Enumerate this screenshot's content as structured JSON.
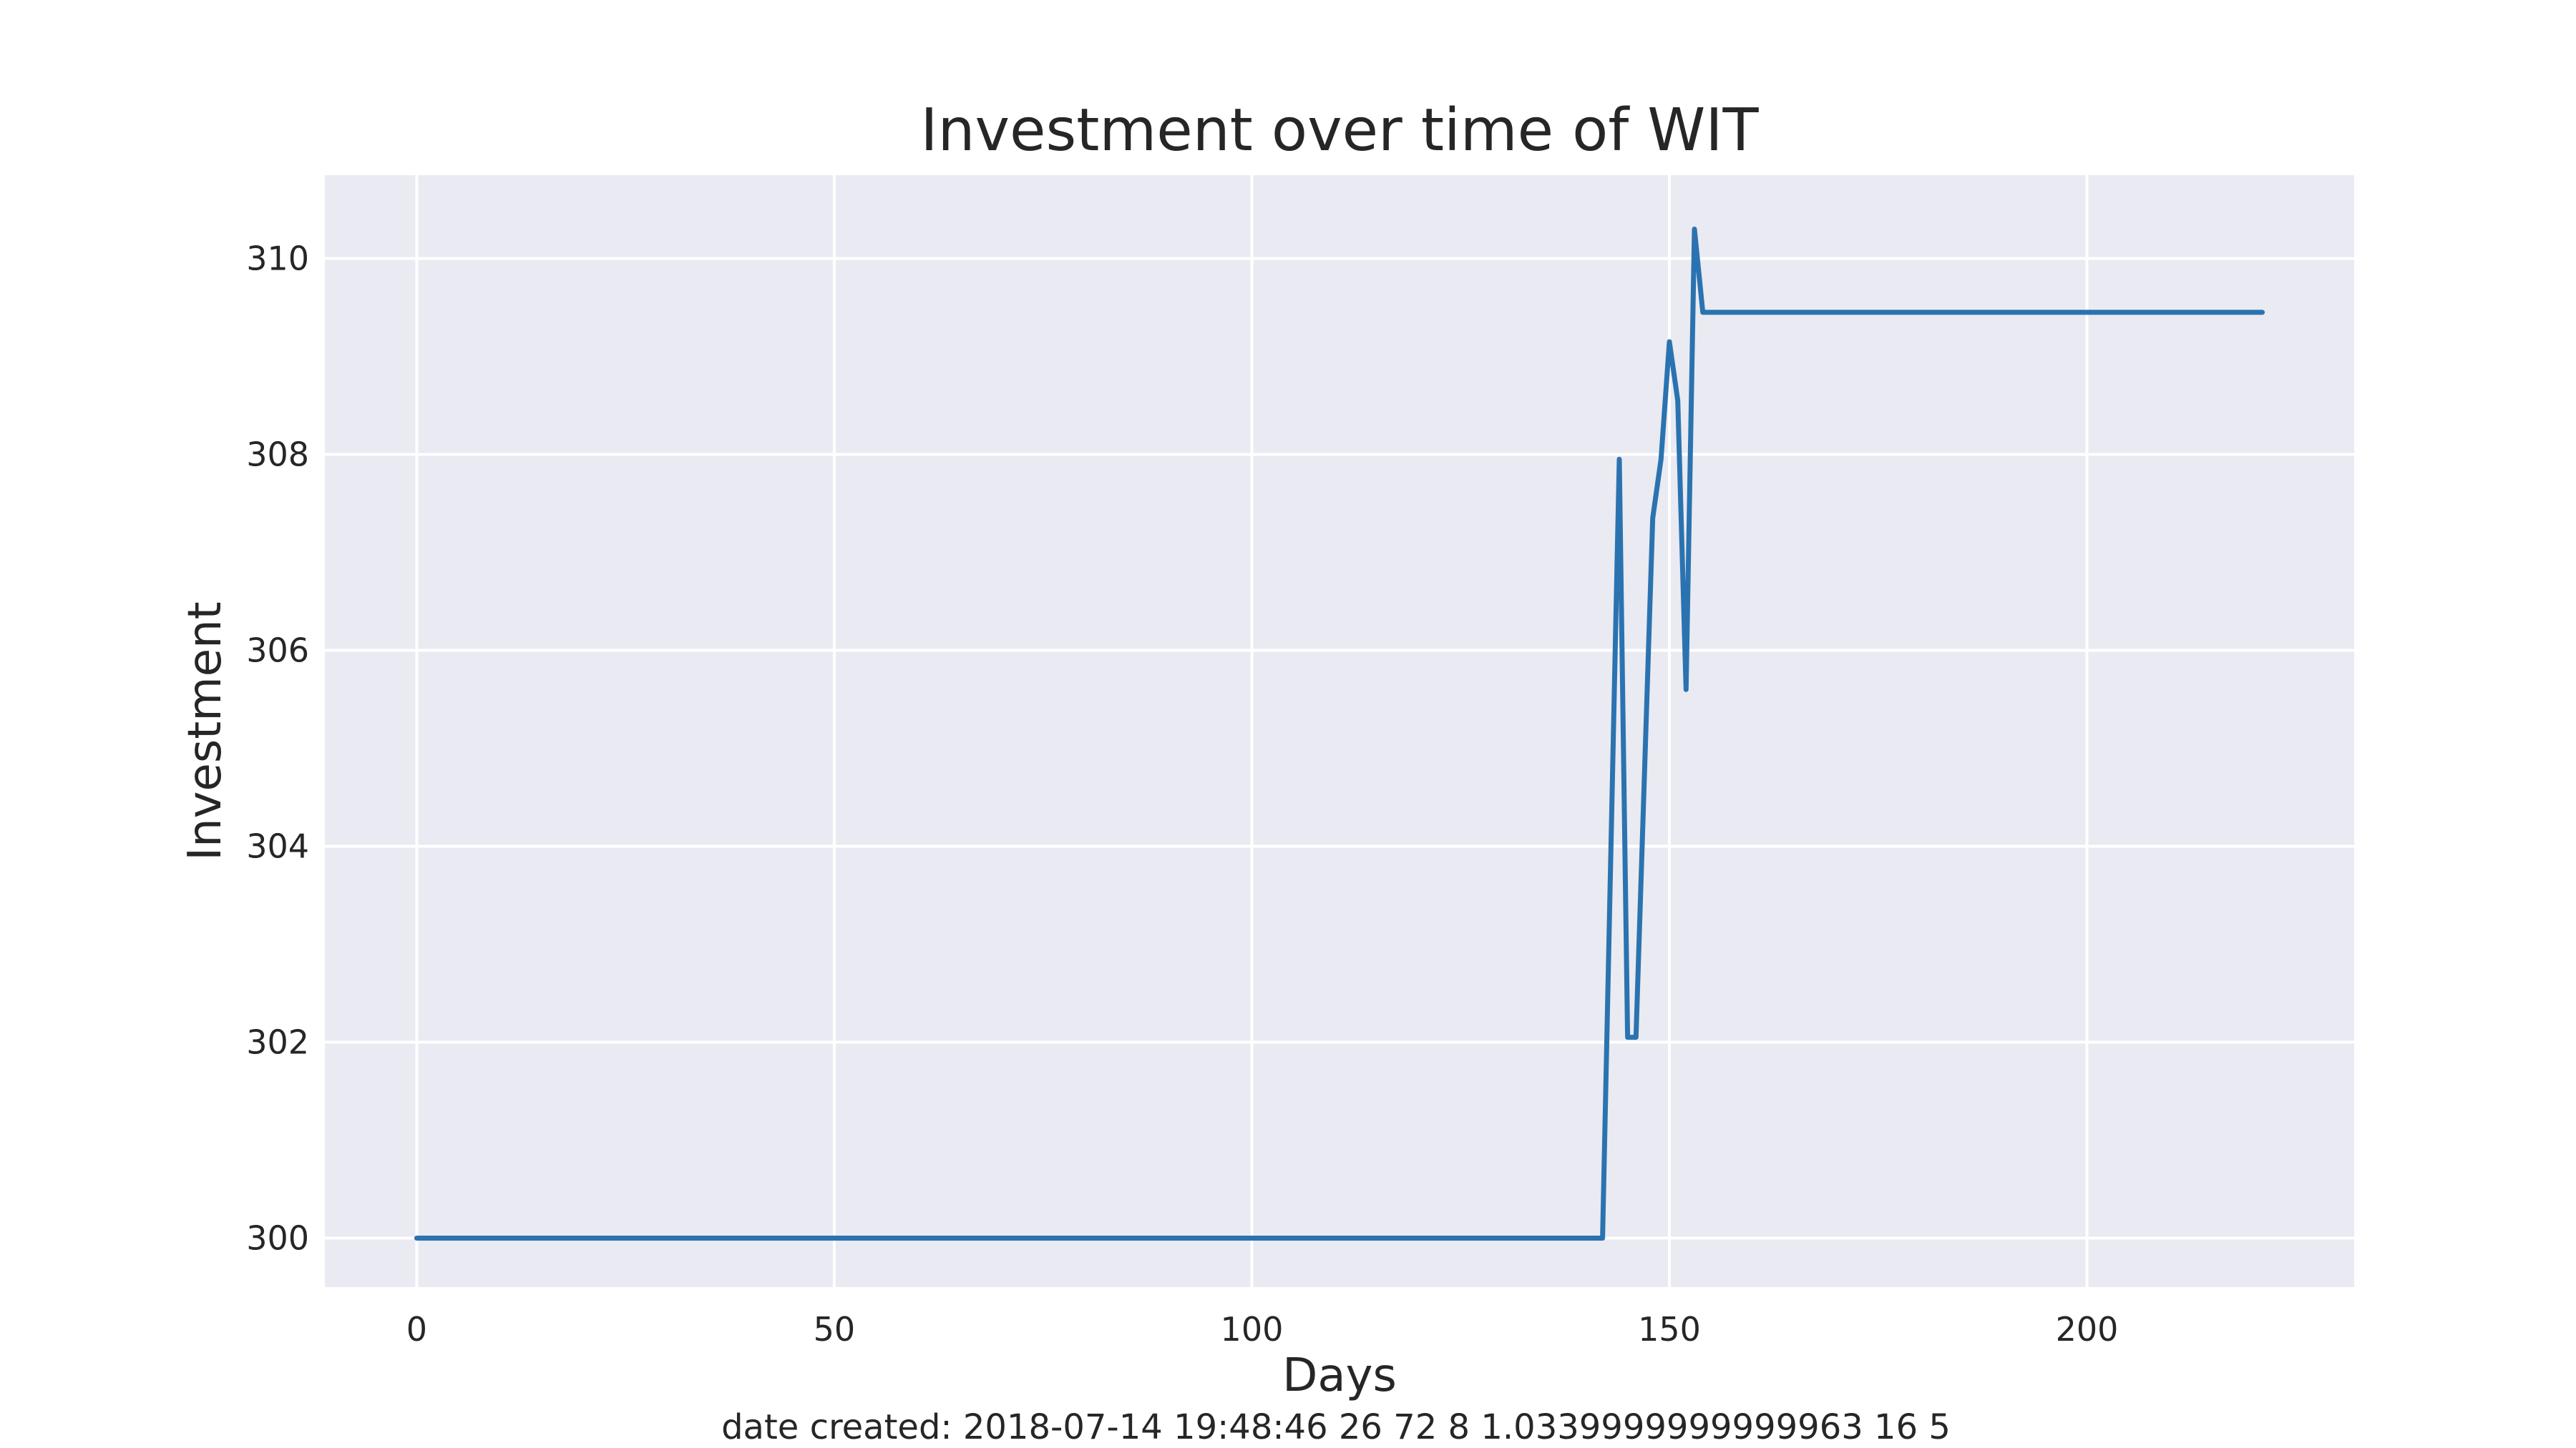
{
  "chart_data": {
    "type": "line",
    "title": "Investment over time of WIT",
    "xlabel": "Days",
    "ylabel": "Investment",
    "xlim": [
      -11,
      232
    ],
    "ylim": [
      299.5,
      310.85
    ],
    "xticks": [
      0,
      50,
      100,
      150,
      200
    ],
    "yticks": [
      300,
      302,
      304,
      306,
      308,
      310
    ],
    "grid": true,
    "series": [
      {
        "color": "#2b73b0",
        "x": [
          0,
          142,
          144,
          145,
          146,
          148,
          149,
          150,
          151,
          152,
          153,
          154,
          221
        ],
        "y": [
          300,
          300,
          307.95,
          302.05,
          302.05,
          307.35,
          307.95,
          309.15,
          308.55,
          305.6,
          310.3,
          309.45,
          309.45
        ]
      }
    ],
    "footer": "date created: 2018-07-14 19:48:46 26 72 8 1.0339999999999963 16 5"
  },
  "colors": {
    "plot_background": "#eaeaf2",
    "grid": "#ffffff",
    "line": "#2b73b0",
    "text": "#262626"
  }
}
